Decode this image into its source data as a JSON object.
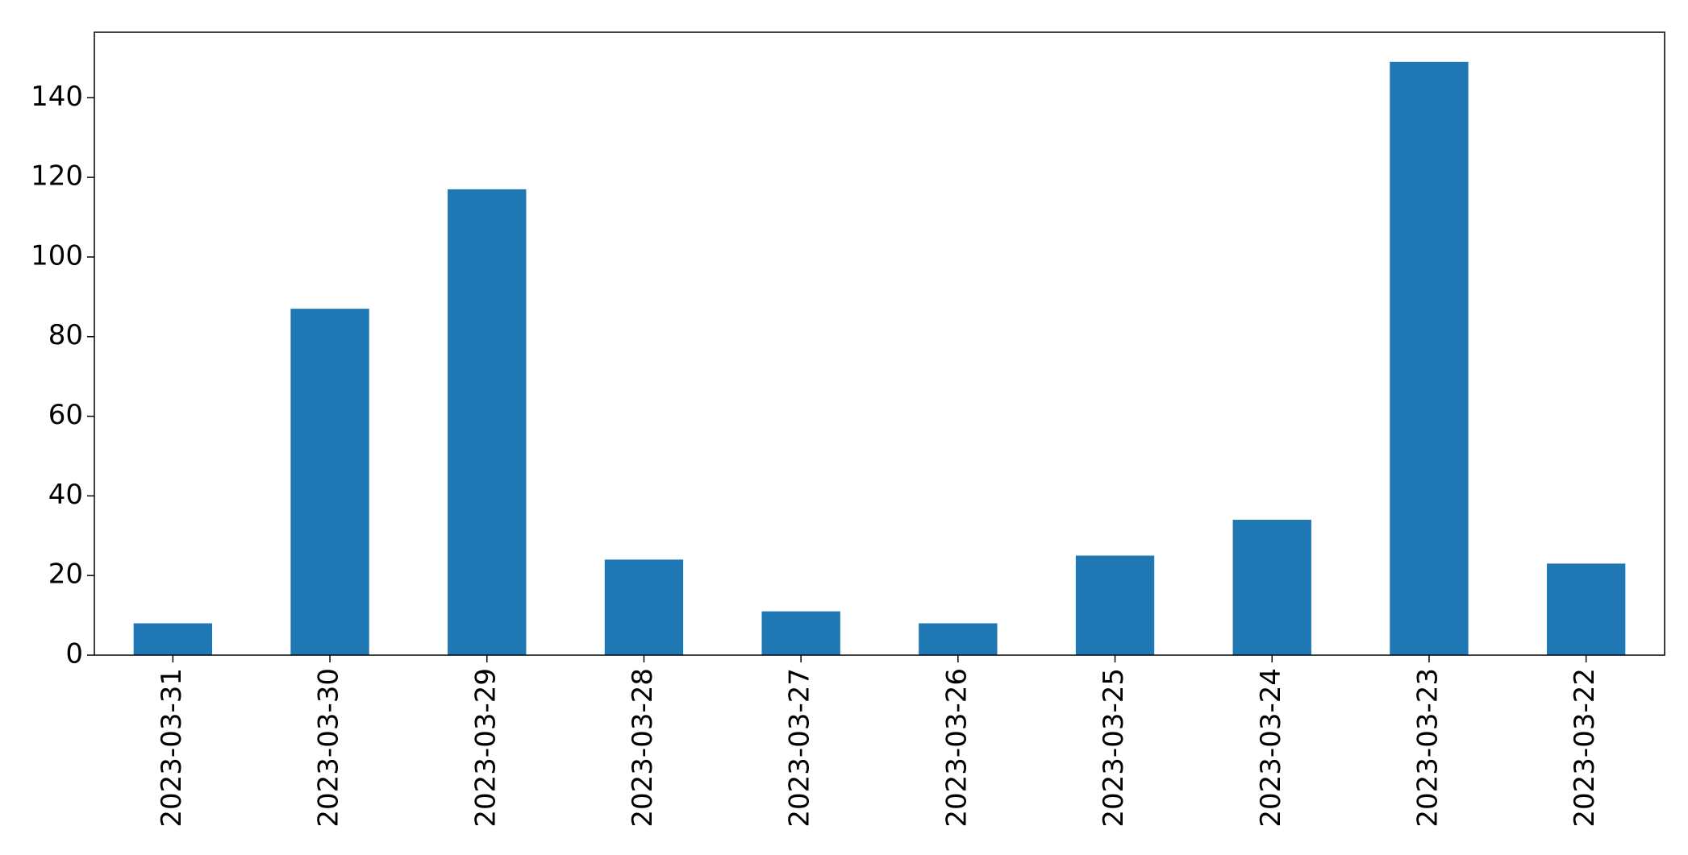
{
  "chart_data": {
    "type": "bar",
    "categories": [
      "2023-03-31",
      "2023-03-30",
      "2023-03-29",
      "2023-03-28",
      "2023-03-27",
      "2023-03-26",
      "2023-03-25",
      "2023-03-24",
      "2023-03-23",
      "2023-03-22"
    ],
    "values": [
      8,
      87,
      117,
      24,
      11,
      8,
      25,
      34,
      149,
      23
    ],
    "color": "#1f77b4",
    "ylim": [
      0,
      156.45
    ],
    "yticks": [
      0,
      20,
      40,
      60,
      80,
      100,
      120,
      140
    ],
    "grid": false
  }
}
